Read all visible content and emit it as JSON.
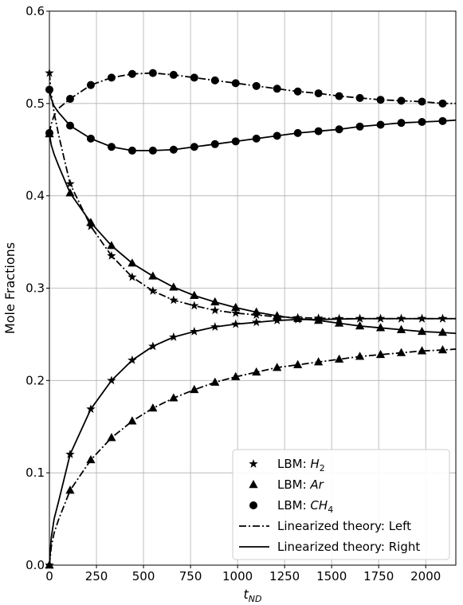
{
  "chart_data": {
    "type": "line",
    "title": "",
    "xlabel": "t",
    "xlabel_sub": "ND",
    "ylabel": "Mole Fractions",
    "xlim": [
      0,
      2160
    ],
    "ylim": [
      0.0,
      0.6
    ],
    "xticks": [
      0,
      250,
      500,
      750,
      1000,
      1250,
      1500,
      1750,
      2000
    ],
    "yticks": [
      0.0,
      0.1,
      0.2,
      0.3,
      0.4,
      0.5,
      0.6
    ],
    "xtick_labels": [
      "0",
      "250",
      "500",
      "750",
      "1000",
      "1250",
      "1500",
      "1750",
      "2000"
    ],
    "ytick_labels": [
      "0.0",
      "0.1",
      "0.2",
      "0.3",
      "0.4",
      "0.5",
      "0.6"
    ],
    "grid": true,
    "legend_position": "bottom-right",
    "legend": [
      {
        "label": "LBM: ",
        "label_sub": "H",
        "label_sub_num": "2",
        "marker": "star"
      },
      {
        "label": "LBM: ",
        "label_sub": "Ar",
        "label_sub_num": "",
        "marker": "triangle"
      },
      {
        "label": "LBM: ",
        "label_sub": "CH",
        "label_sub_num": "4",
        "marker": "circle"
      },
      {
        "label": "Linearized theory: Left",
        "line": "dashdot"
      },
      {
        "label": "Linearized theory: Right",
        "line": "solid"
      }
    ],
    "series": [
      {
        "name": "H2 Left (theory)",
        "style": "dashdot",
        "x": [
          0,
          10,
          25,
          50,
          110,
          220,
          330,
          440,
          550,
          660,
          770,
          880,
          990,
          1100,
          1210,
          1320,
          1430,
          1540,
          1650,
          1760,
          1870,
          1980,
          2090,
          2160
        ],
        "y": [
          0.533,
          0.51,
          0.49,
          0.465,
          0.413,
          0.367,
          0.335,
          0.312,
          0.297,
          0.287,
          0.281,
          0.276,
          0.273,
          0.271,
          0.269,
          0.268,
          0.2675,
          0.267,
          0.267,
          0.267,
          0.267,
          0.267,
          0.267,
          0.267
        ]
      },
      {
        "name": "H2 Left (LBM)",
        "marker": "star",
        "x": [
          0,
          110,
          220,
          330,
          440,
          550,
          660,
          770,
          880,
          990,
          1100,
          1210,
          1320,
          1430,
          1540,
          1650,
          1760,
          1870,
          1980,
          2090
        ],
        "y": [
          0.533,
          0.413,
          0.367,
          0.335,
          0.312,
          0.297,
          0.287,
          0.281,
          0.276,
          0.273,
          0.271,
          0.269,
          0.268,
          0.2675,
          0.267,
          0.267,
          0.267,
          0.267,
          0.267,
          0.267
        ]
      },
      {
        "name": "H2 Right (theory)",
        "style": "solid",
        "x": [
          0,
          10,
          25,
          50,
          110,
          220,
          330,
          440,
          550,
          660,
          770,
          880,
          990,
          1100,
          1210,
          1320,
          1430,
          1540,
          1650,
          1760,
          1870,
          1980,
          2090,
          2160
        ],
        "y": [
          0.0,
          0.03,
          0.05,
          0.07,
          0.12,
          0.169,
          0.2,
          0.222,
          0.237,
          0.247,
          0.253,
          0.258,
          0.261,
          0.263,
          0.265,
          0.266,
          0.266,
          0.2665,
          0.267,
          0.267,
          0.267,
          0.267,
          0.267,
          0.267
        ]
      },
      {
        "name": "H2 Right (LBM)",
        "marker": "star",
        "x": [
          0,
          110,
          220,
          330,
          440,
          550,
          660,
          770,
          880,
          990,
          1100,
          1210,
          1320,
          1430,
          1540,
          1650,
          1760,
          1870,
          1980,
          2090
        ],
        "y": [
          0.0,
          0.12,
          0.169,
          0.2,
          0.222,
          0.237,
          0.247,
          0.253,
          0.258,
          0.261,
          0.263,
          0.265,
          0.266,
          0.266,
          0.2665,
          0.267,
          0.267,
          0.267,
          0.267,
          0.267
        ]
      },
      {
        "name": "Ar Left (theory)",
        "style": "solid",
        "x": [
          0,
          10,
          25,
          50,
          110,
          220,
          330,
          440,
          550,
          660,
          770,
          880,
          990,
          1100,
          1210,
          1320,
          1430,
          1540,
          1650,
          1760,
          1870,
          1980,
          2090,
          2160
        ],
        "y": [
          0.467,
          0.455,
          0.445,
          0.432,
          0.403,
          0.371,
          0.346,
          0.327,
          0.313,
          0.301,
          0.292,
          0.285,
          0.279,
          0.274,
          0.27,
          0.267,
          0.265,
          0.262,
          0.259,
          0.257,
          0.255,
          0.253,
          0.252,
          0.251
        ]
      },
      {
        "name": "Ar Left (LBM)",
        "marker": "triangle",
        "x": [
          0,
          110,
          220,
          330,
          440,
          550,
          660,
          770,
          880,
          990,
          1100,
          1210,
          1320,
          1430,
          1540,
          1650,
          1760,
          1870,
          1980,
          2090
        ],
        "y": [
          0.467,
          0.403,
          0.371,
          0.346,
          0.327,
          0.313,
          0.301,
          0.292,
          0.285,
          0.279,
          0.274,
          0.27,
          0.267,
          0.265,
          0.262,
          0.259,
          0.257,
          0.255,
          0.253,
          0.252
        ]
      },
      {
        "name": "Ar Right (theory)",
        "style": "dashdot",
        "x": [
          0,
          10,
          25,
          50,
          110,
          220,
          330,
          440,
          550,
          660,
          770,
          880,
          990,
          1100,
          1210,
          1320,
          1430,
          1540,
          1650,
          1760,
          1870,
          1980,
          2090,
          2160
        ],
        "y": [
          0.0,
          0.02,
          0.035,
          0.05,
          0.081,
          0.114,
          0.138,
          0.156,
          0.17,
          0.181,
          0.19,
          0.198,
          0.204,
          0.209,
          0.214,
          0.217,
          0.22,
          0.223,
          0.226,
          0.228,
          0.23,
          0.232,
          0.233,
          0.234
        ]
      },
      {
        "name": "Ar Right (LBM)",
        "marker": "triangle",
        "x": [
          0,
          110,
          220,
          330,
          440,
          550,
          660,
          770,
          880,
          990,
          1100,
          1210,
          1320,
          1430,
          1540,
          1650,
          1760,
          1870,
          1980,
          2090
        ],
        "y": [
          0.0,
          0.081,
          0.114,
          0.138,
          0.156,
          0.17,
          0.181,
          0.19,
          0.198,
          0.204,
          0.209,
          0.214,
          0.217,
          0.22,
          0.223,
          0.226,
          0.228,
          0.23,
          0.232,
          0.233
        ]
      },
      {
        "name": "CH4 Left (theory)",
        "style": "solid",
        "x": [
          0,
          10,
          25,
          50,
          110,
          220,
          330,
          440,
          550,
          660,
          770,
          880,
          990,
          1100,
          1210,
          1320,
          1430,
          1540,
          1650,
          1760,
          1870,
          1980,
          2090,
          2160
        ],
        "y": [
          0.515,
          0.505,
          0.497,
          0.49,
          0.476,
          0.462,
          0.453,
          0.449,
          0.449,
          0.45,
          0.453,
          0.456,
          0.459,
          0.462,
          0.465,
          0.468,
          0.47,
          0.472,
          0.475,
          0.477,
          0.479,
          0.48,
          0.481,
          0.482
        ]
      },
      {
        "name": "CH4 Left (LBM)",
        "marker": "circle",
        "x": [
          0,
          110,
          220,
          330,
          440,
          550,
          660,
          770,
          880,
          990,
          1100,
          1210,
          1320,
          1430,
          1540,
          1650,
          1760,
          1870,
          1980,
          2090
        ],
        "y": [
          0.515,
          0.476,
          0.462,
          0.453,
          0.449,
          0.449,
          0.45,
          0.453,
          0.456,
          0.459,
          0.462,
          0.465,
          0.468,
          0.47,
          0.472,
          0.475,
          0.477,
          0.479,
          0.48,
          0.481
        ]
      },
      {
        "name": "CH4 Right (theory)",
        "style": "dashdot",
        "x": [
          0,
          10,
          25,
          50,
          110,
          220,
          330,
          440,
          550,
          660,
          770,
          880,
          990,
          1100,
          1210,
          1320,
          1430,
          1540,
          1650,
          1760,
          1870,
          1980,
          2090,
          2160
        ],
        "y": [
          0.468,
          0.478,
          0.487,
          0.495,
          0.505,
          0.52,
          0.528,
          0.532,
          0.533,
          0.531,
          0.528,
          0.525,
          0.522,
          0.519,
          0.516,
          0.513,
          0.511,
          0.508,
          0.506,
          0.504,
          0.503,
          0.502,
          0.5,
          0.5
        ]
      },
      {
        "name": "CH4 Right (LBM)",
        "marker": "circle",
        "x": [
          0,
          110,
          220,
          330,
          440,
          550,
          660,
          770,
          880,
          990,
          1100,
          1210,
          1320,
          1430,
          1540,
          1650,
          1760,
          1870,
          1980,
          2090
        ],
        "y": [
          0.468,
          0.505,
          0.52,
          0.528,
          0.532,
          0.533,
          0.531,
          0.528,
          0.525,
          0.522,
          0.519,
          0.516,
          0.513,
          0.511,
          0.508,
          0.506,
          0.504,
          0.503,
          0.502,
          0.5
        ]
      }
    ]
  }
}
